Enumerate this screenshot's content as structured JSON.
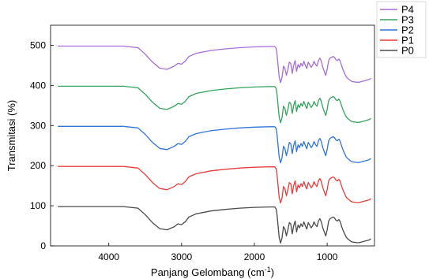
{
  "chart_data": {
    "type": "line",
    "title": "",
    "xlabel": "Panjang Gelombang (cm",
    "xlabel_sup": "-1",
    "xlabel_tail": ")",
    "ylabel": "Transmitasi (%)",
    "xlim": [
      4800,
      350
    ],
    "ylim": [
      0,
      550
    ],
    "x_reversed": true,
    "x_ticks": [
      4000,
      3000,
      2000,
      1000
    ],
    "y_ticks": [
      0,
      100,
      200,
      300,
      400,
      500
    ],
    "x_tick_labels": [
      "4000",
      "3000",
      "2000",
      "1000"
    ],
    "y_tick_labels": [
      "0",
      "100",
      "200",
      "300",
      "400",
      "500"
    ],
    "grid": false,
    "legend_position": "top-right-outside",
    "series": [
      {
        "name": "P4",
        "color": "#A56ED6",
        "offset": 400
      },
      {
        "name": "P3",
        "color": "#33A35C",
        "offset": 300
      },
      {
        "name": "P2",
        "color": "#2F74D9",
        "offset": 200
      },
      {
        "name": "P1",
        "color": "#E83C3C",
        "offset": 100
      },
      {
        "name": "P0",
        "color": "#4A4A4A",
        "offset": 0
      }
    ],
    "base_spectrum": {
      "x": [
        4700,
        3800,
        3600,
        3500,
        3400,
        3300,
        3200,
        3100,
        3050,
        3000,
        2950,
        2900,
        2850,
        2800,
        2600,
        2400,
        2200,
        2000,
        1800,
        1720,
        1700,
        1690,
        1680,
        1660,
        1640,
        1620,
        1600,
        1580,
        1560,
        1540,
        1520,
        1500,
        1480,
        1460,
        1440,
        1420,
        1400,
        1380,
        1360,
        1340,
        1320,
        1300,
        1280,
        1260,
        1240,
        1220,
        1200,
        1180,
        1160,
        1140,
        1120,
        1100,
        1080,
        1060,
        1040,
        1020,
        1000,
        980,
        960,
        940,
        920,
        900,
        880,
        860,
        840,
        820,
        800,
        780,
        760,
        740,
        720,
        700,
        680,
        660,
        640,
        620,
        600,
        580,
        560,
        540,
        520,
        500,
        480,
        460,
        440,
        420,
        400
      ],
      "y": [
        98,
        98,
        94,
        78,
        58,
        43,
        40,
        48,
        55,
        53,
        60,
        72,
        76,
        80,
        87,
        91,
        94,
        96,
        97,
        97,
        92,
        80,
        60,
        22,
        7,
        20,
        48,
        42,
        25,
        40,
        58,
        55,
        30,
        50,
        62,
        35,
        52,
        45,
        55,
        48,
        60,
        50,
        42,
        58,
        52,
        45,
        50,
        60,
        52,
        48,
        62,
        68,
        60,
        45,
        35,
        25,
        40,
        62,
        68,
        70,
        72,
        70,
        64,
        62,
        66,
        60,
        48,
        38,
        30,
        22,
        18,
        15,
        12,
        10,
        9,
        9,
        8,
        8,
        8,
        9,
        10,
        11,
        12,
        13,
        14,
        15,
        18
      ]
    }
  }
}
